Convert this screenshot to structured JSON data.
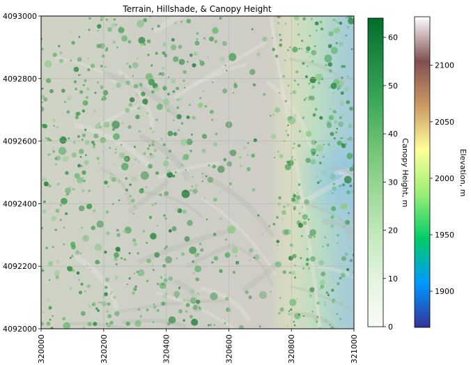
{
  "chart_data": {
    "type": "heatmap",
    "title": "Terrain, Hillshade, & Canopy Height",
    "xlabel": "",
    "ylabel": "",
    "xlim": [
      320000,
      321000
    ],
    "ylim": [
      4092000,
      4093000
    ],
    "x_ticks": [
      320000,
      320200,
      320400,
      320600,
      320800,
      321000
    ],
    "y_ticks": [
      4092000,
      4092200,
      4092400,
      4092600,
      4092800,
      4093000
    ],
    "x_tick_labels": [
      "320000",
      "320200",
      "320400",
      "320600",
      "320800",
      "321000"
    ],
    "y_tick_labels": [
      "4092000",
      "4092200",
      "4092400",
      "4092600",
      "4092800",
      "4093000"
    ],
    "grid": true,
    "colorbars": [
      {
        "name": "canopy",
        "label": "Canopy Height, m",
        "range": [
          0,
          64
        ],
        "ticks": [
          0,
          10,
          20,
          30,
          40,
          50,
          60
        ],
        "tick_labels": [
          "0",
          "10",
          "20",
          "30",
          "40",
          "50",
          "60"
        ],
        "colors": [
          "#f7fcf5",
          "#e5f5e0",
          "#c7e9c0",
          "#a1d99b",
          "#74c476",
          "#41ab5d",
          "#238b45",
          "#006d2c"
        ]
      },
      {
        "name": "elevation",
        "label": "Elevation, m",
        "range": [
          1868,
          2143
        ],
        "ticks": [
          1900,
          1950,
          2000,
          2050,
          2100
        ],
        "tick_labels": [
          "1900",
          "1950",
          "2000",
          "2050",
          "2100"
        ],
        "colors": [
          "#333399",
          "#0099ff",
          "#00cc66",
          "#99ee77",
          "#ffff99",
          "#cc9966",
          "#805050",
          "#ffffff"
        ]
      }
    ]
  }
}
